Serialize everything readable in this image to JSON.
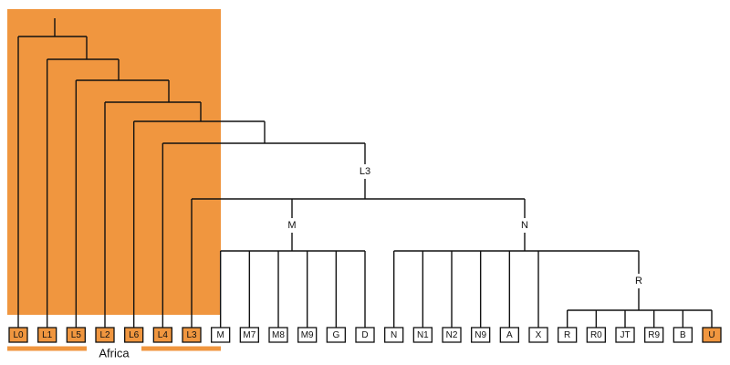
{
  "leaves": [
    "L0",
    "L1",
    "L5",
    "L2",
    "L6",
    "L4",
    "L3",
    "M",
    "M7",
    "M8",
    "M9",
    "G",
    "D",
    "N",
    "N1",
    "N2",
    "N9",
    "A",
    "X",
    "R",
    "R0",
    "JT",
    "R9",
    "B",
    "U"
  ],
  "clade_labels": [
    "L3",
    "M",
    "N",
    "R"
  ],
  "region_label": "Africa"
}
